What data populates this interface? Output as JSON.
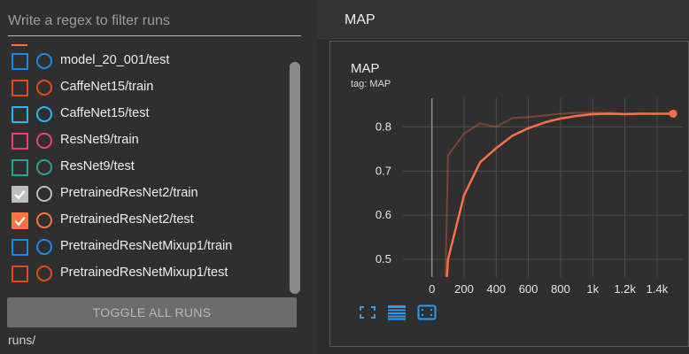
{
  "sidebar": {
    "filter": {
      "placeholder": "Write a regex to filter runs",
      "value": ""
    },
    "runs": [
      {
        "label": "model_20_001/test",
        "color": "#1e88e5",
        "checked": false
      },
      {
        "label": "CaffeNet15/train",
        "color": "#e64a19",
        "checked": false
      },
      {
        "label": "CaffeNet15/test",
        "color": "#29b6f6",
        "checked": false
      },
      {
        "label": "ResNet9/train",
        "color": "#ec407a",
        "checked": false
      },
      {
        "label": "ResNet9/test",
        "color": "#26a69a",
        "checked": false
      },
      {
        "label": "PretrainedResNet2/train",
        "color": "#bdbdbd",
        "checked": true
      },
      {
        "label": "PretrainedResNet2/test",
        "color": "#ff7043",
        "checked": true
      },
      {
        "label": "PretrainedResNetMixup1/train",
        "color": "#1e88e5",
        "checked": false
      },
      {
        "label": "PretrainedResNetMixup1/test",
        "color": "#e64a19",
        "checked": false
      }
    ],
    "toggle_all_label": "TOGGLE ALL RUNS",
    "runs_path": "runs/"
  },
  "main": {
    "section_title": "MAP",
    "card": {
      "title": "MAP",
      "tag": "tag: MAP",
      "tools": [
        {
          "name": "fit-domain-icon"
        },
        {
          "name": "toggle-log-lines-icon"
        },
        {
          "name": "zoom-selection-icon"
        }
      ]
    }
  },
  "chart_data": {
    "type": "line",
    "title": "MAP",
    "xlabel": "",
    "ylabel": "",
    "xlim": [
      -180,
      1560
    ],
    "ylim": [
      0.46,
      0.865
    ],
    "x_ticks": [
      0,
      200,
      400,
      600,
      800,
      1000,
      1200,
      1400
    ],
    "x_tick_labels": [
      "0",
      "200",
      "400",
      "600",
      "800",
      "1k",
      "1.2k",
      "1.4k"
    ],
    "y_ticks": [
      0.5,
      0.6,
      0.7,
      0.8
    ],
    "y_tick_labels": [
      "0.5",
      "0.6",
      "0.7",
      "0.8"
    ],
    "grid": true,
    "series": [
      {
        "color": "#ff7043",
        "smoothed": true,
        "x": [
          80,
          100,
          200,
          300,
          400,
          500,
          600,
          700,
          800,
          900,
          1000,
          1100,
          1200,
          1300,
          1400,
          1500
        ],
        "y": [
          0.38,
          0.5,
          0.645,
          0.72,
          0.752,
          0.78,
          0.797,
          0.81,
          0.819,
          0.825,
          0.829,
          0.83,
          0.829,
          0.83,
          0.83,
          0.83
        ]
      },
      {
        "color": "#ff7043",
        "smoothed": false,
        "x": [
          80,
          100,
          200,
          300,
          400,
          500,
          600,
          700,
          800,
          900,
          1000,
          1100,
          1200,
          1300,
          1400,
          1500
        ],
        "y": [
          0.38,
          0.735,
          0.785,
          0.808,
          0.8,
          0.82,
          0.822,
          0.826,
          0.83,
          0.832,
          0.832,
          0.832,
          0.83,
          0.831,
          0.83,
          0.83
        ]
      }
    ]
  }
}
